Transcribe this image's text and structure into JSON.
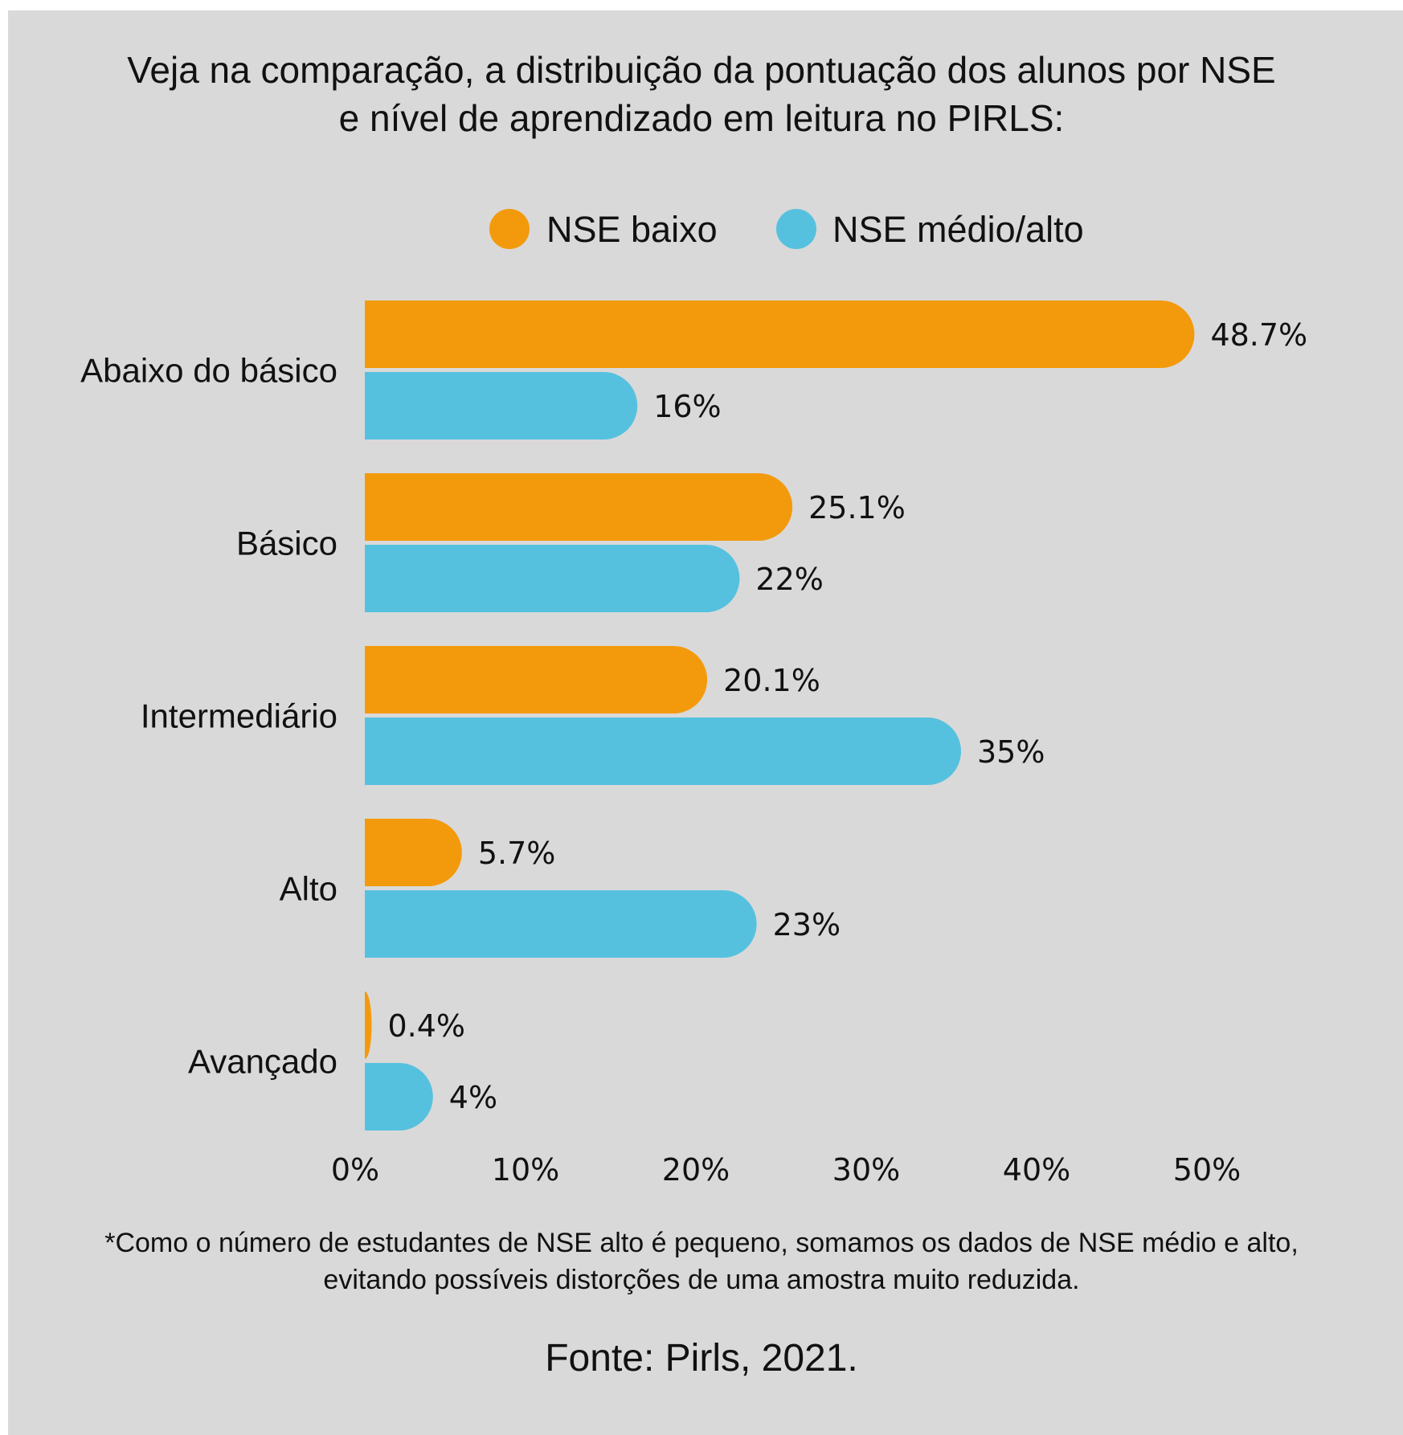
{
  "chart_data": {
    "type": "bar",
    "orientation": "horizontal",
    "title_lines": [
      "Veja na comparação, a distribuição da pontuação dos alunos por NSE",
      "e nível de aprendizado em leitura no PIRLS:"
    ],
    "categories": [
      "Abaixo do básico",
      "Básico",
      "Intermediário",
      "Alto",
      "Avançado"
    ],
    "series": [
      {
        "name": "NSE baixo",
        "color": "#f39a0c",
        "values": [
          48.7,
          25.1,
          20.1,
          5.7,
          0.4
        ],
        "labels": [
          "48.7%",
          "25.1%",
          "20.1%",
          "5.7%",
          "0.4%"
        ]
      },
      {
        "name": "NSE médio/alto",
        "color": "#56c1df",
        "values": [
          16,
          22,
          35,
          23,
          4
        ],
        "labels": [
          "16%",
          "22%",
          "35%",
          "23%",
          "4%"
        ]
      }
    ],
    "xlim": [
      0,
      50
    ],
    "x_ticks": [
      0,
      10,
      20,
      30,
      40,
      50
    ],
    "x_tick_labels": [
      "0%",
      "10%",
      "20%",
      "30%",
      "40%",
      "50%"
    ],
    "legend_position": "top-center",
    "grid": false,
    "note_lines": [
      "*Como o número de estudantes de NSE alto é pequeno, somamos os dados de NSE médio e alto,",
      "evitando possíveis distorções de uma amostra muito reduzida."
    ],
    "source": "Fonte: Pirls, 2021.",
    "background_color": "#d9d9d9"
  }
}
